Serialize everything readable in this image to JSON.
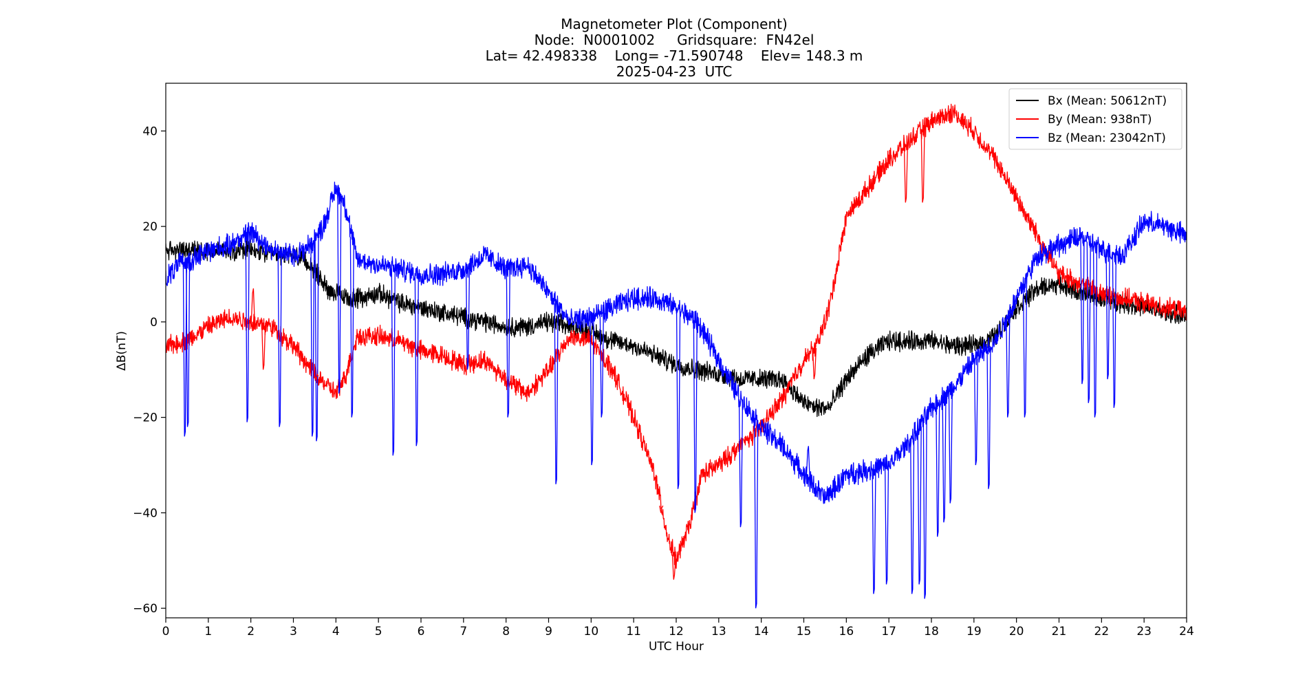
{
  "chart_data": {
    "type": "line",
    "title_lines": [
      "Magnetometer Plot (Component)",
      "Node:  N0001002     Gridsquare:  FN42el",
      "Lat= 42.498338    Long= -71.590748    Elev= 148.3 m",
      "2025-04-23  UTC"
    ],
    "xlabel": "UTC Hour",
    "ylabel": "ΔB(nT)",
    "xlim": [
      0,
      24
    ],
    "ylim": [
      -62,
      50
    ],
    "xticks": [
      0,
      1,
      2,
      3,
      4,
      5,
      6,
      7,
      8,
      9,
      10,
      11,
      12,
      13,
      14,
      15,
      16,
      17,
      18,
      19,
      20,
      21,
      22,
      23,
      24
    ],
    "yticks": [
      -60,
      -40,
      -20,
      0,
      20,
      40
    ],
    "grid": false,
    "legend_position": "top-right",
    "series": [
      {
        "name": "Bx (Mean: 50612nT)",
        "color": "#000000",
        "noise": 1.6,
        "x": [
          0,
          0.5,
          1,
          1.5,
          2,
          2.5,
          3,
          3.4,
          3.8,
          4.2,
          4.6,
          5,
          5.5,
          6,
          6.5,
          7,
          7.5,
          8,
          8.5,
          9,
          9.5,
          10,
          10.5,
          11,
          11.5,
          12,
          12.5,
          13,
          13.5,
          14,
          14.5,
          15,
          15.3,
          15.6,
          16,
          16.5,
          17,
          17.5,
          18,
          18.5,
          19,
          19.5,
          20,
          20.5,
          21,
          21.5,
          22,
          22.5,
          23,
          23.5,
          24
        ],
        "y": [
          15,
          15,
          15,
          15,
          15,
          14,
          14,
          12,
          7,
          5,
          5,
          6,
          4,
          3,
          2,
          1,
          0,
          -1,
          -1,
          0,
          -1,
          -2,
          -4,
          -5,
          -7,
          -9,
          -10,
          -11,
          -12,
          -12,
          -12,
          -17,
          -18,
          -18,
          -12,
          -7,
          -4,
          -4,
          -4,
          -5,
          -5,
          -3,
          3,
          7,
          8,
          6,
          5,
          4,
          3,
          2,
          1
        ]
      },
      {
        "name": "By (Mean: 938nT)",
        "color": "#ff0000",
        "noise": 1.6,
        "x": [
          0,
          0.5,
          1,
          1.5,
          2,
          2.5,
          3,
          3.5,
          4,
          4.2,
          4.5,
          5,
          5.5,
          6,
          6.5,
          7,
          7.5,
          8,
          8.5,
          9,
          9.5,
          10,
          10.5,
          11,
          11.5,
          11.8,
          12,
          12.3,
          12.6,
          13,
          13.5,
          14,
          14.5,
          15,
          15.3,
          15.6,
          16,
          16.5,
          17,
          17.5,
          18,
          18.5,
          19,
          19.5,
          20,
          20.5,
          21,
          21.5,
          22,
          22.5,
          23,
          23.5,
          24
        ],
        "y": [
          -5,
          -4,
          -1,
          1,
          0,
          -1,
          -5,
          -11,
          -15,
          -12,
          -3,
          -3,
          -4,
          -6,
          -7,
          -9,
          -8,
          -12,
          -15,
          -10,
          -3,
          -4,
          -10,
          -20,
          -32,
          -45,
          -50,
          -43,
          -32,
          -30,
          -26,
          -22,
          -16,
          -8,
          -5,
          3,
          22,
          28,
          34,
          38,
          42,
          44,
          40,
          34,
          26,
          18,
          10,
          8,
          6,
          5,
          4,
          3,
          2
        ]
      },
      {
        "name": "Bz (Mean: 23042nT)",
        "color": "#0000ff",
        "noise": 1.8,
        "x": [
          0,
          0.3,
          0.6,
          1,
          1.5,
          2,
          2.5,
          3,
          3.4,
          3.7,
          4,
          4.2,
          4.5,
          5,
          5.5,
          6,
          6.5,
          7,
          7.5,
          8,
          8.5,
          9,
          9.5,
          10,
          10.5,
          11,
          11.5,
          12,
          12.5,
          13,
          13.5,
          14,
          14.5,
          15,
          15.5,
          16,
          16.5,
          17,
          17.5,
          18,
          18.5,
          19,
          19.5,
          20,
          20.5,
          21,
          21.5,
          22,
          22.5,
          23,
          23.5,
          24
        ],
        "y": [
          9,
          12,
          13,
          15,
          16,
          19,
          15,
          14,
          16,
          20,
          28,
          25,
          13,
          12,
          11,
          10,
          10,
          11,
          14,
          11,
          12,
          6,
          0,
          1,
          3,
          5,
          5,
          3,
          0,
          -8,
          -16,
          -22,
          -26,
          -32,
          -37,
          -32,
          -31,
          -30,
          -25,
          -18,
          -14,
          -8,
          -4,
          5,
          14,
          16,
          18,
          15,
          14,
          21,
          20,
          18
        ]
      }
    ],
    "spikes": [
      {
        "series": "Bz (Mean: 23042nT)",
        "x": [
          0.45,
          0.52,
          1.92,
          2.68,
          3.45,
          3.55,
          4.08,
          4.38,
          5.35,
          5.9,
          7.1,
          8.05,
          9.18,
          10.02,
          10.25,
          12.05,
          12.45,
          13.52,
          13.88,
          15.1,
          16.65,
          16.95,
          17.55,
          17.72,
          17.85,
          18.15,
          18.3,
          18.45,
          19.05,
          19.35,
          19.8,
          20.2,
          21.55,
          21.7,
          21.85,
          22.15,
          22.3
        ],
        "y": [
          -24,
          -22,
          -21,
          -22,
          -24,
          -25,
          -15,
          -20,
          -28,
          -26,
          -10,
          -20,
          -34,
          -30,
          -20,
          -35,
          -40,
          -43,
          -60,
          -27,
          -57,
          -55,
          -57,
          -55,
          -58,
          -45,
          -42,
          -38,
          -30,
          -35,
          -20,
          -20,
          -13,
          -17,
          -20,
          -12,
          -18
        ]
      },
      {
        "series": "By (Mean: 938nT)",
        "x": [
          2.05,
          2.3,
          3.55,
          11.65,
          11.95,
          17.4,
          17.8,
          15.25
        ],
        "y": [
          6,
          -10,
          -12,
          -40,
          -54,
          25,
          25,
          -12
        ]
      }
    ]
  }
}
